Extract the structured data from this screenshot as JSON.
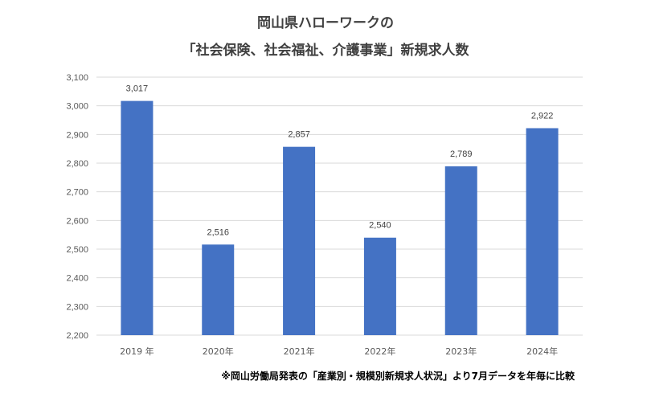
{
  "chart_data": {
    "type": "bar",
    "title": "岡山県ハローワークの",
    "subtitle": "「社会保険、社会福祉、介護事業」新規求人数",
    "categories": [
      "2019 年",
      "2020年",
      "2021年",
      "2022年",
      "2023年",
      "2024年"
    ],
    "values": [
      3017,
      2516,
      2857,
      2540,
      2789,
      2922
    ],
    "value_labels": [
      "3,017",
      "2,516",
      "2,857",
      "2,540",
      "2,789",
      "2,922"
    ],
    "ylim": [
      2200,
      3100
    ],
    "yticks": [
      2200,
      2300,
      2400,
      2500,
      2600,
      2700,
      2800,
      2900,
      3000,
      3100
    ],
    "ytick_labels": [
      "2,200",
      "2,300",
      "2,400",
      "2,500",
      "2,600",
      "2,700",
      "2,800",
      "2,900",
      "3,000",
      "3,100"
    ],
    "grid": true,
    "bar_color": "#4472C4",
    "grid_color": "#D9D9D9"
  },
  "footnote": "※岡山労働局発表の「産業別・規模別新規求人状況」より7月データを年毎に比較"
}
